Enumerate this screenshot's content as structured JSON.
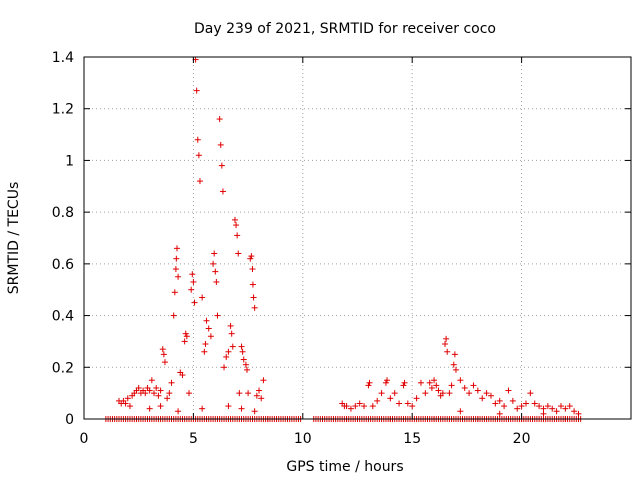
{
  "chart_data": {
    "type": "scatter",
    "title": "Day 239 of 2021, SRMTID for receiver coco",
    "xlabel": "GPS time / hours",
    "ylabel": "SRMTID / TECUs",
    "xlim": [
      0,
      25
    ],
    "ylim": [
      0,
      1.4
    ],
    "x_ticks": [
      0,
      5,
      10,
      15,
      20
    ],
    "x_tick_labels": [
      "0",
      "5",
      "10",
      "15",
      "20"
    ],
    "y_ticks": [
      0,
      0.2,
      0.4,
      0.6,
      0.8,
      1.0,
      1.2,
      1.4
    ],
    "y_tick_labels": [
      "0",
      "0.2",
      "0.4",
      "0.6",
      "0.8",
      "1",
      "1.2",
      "1.4"
    ],
    "grid": true,
    "marker": "+",
    "marker_color": "#e00000",
    "series": [
      {
        "name": "SRMTID",
        "points": [
          [
            1.6,
            0.07
          ],
          [
            1.7,
            0.06
          ],
          [
            1.8,
            0.07
          ],
          [
            1.9,
            0.06
          ],
          [
            2.0,
            0.08
          ],
          [
            2.1,
            0.05
          ],
          [
            2.2,
            0.09
          ],
          [
            2.3,
            0.1
          ],
          [
            2.4,
            0.11
          ],
          [
            2.5,
            0.12
          ],
          [
            2.6,
            0.1
          ],
          [
            2.7,
            0.11
          ],
          [
            2.8,
            0.1
          ],
          [
            2.9,
            0.12
          ],
          [
            3.0,
            0.11
          ],
          [
            3.1,
            0.15
          ],
          [
            3.2,
            0.1
          ],
          [
            3.3,
            0.12
          ],
          [
            3.4,
            0.09
          ],
          [
            3.5,
            0.11
          ],
          [
            3.6,
            0.27
          ],
          [
            3.65,
            0.25
          ],
          [
            3.7,
            0.22
          ],
          [
            3.8,
            0.08
          ],
          [
            3.9,
            0.1
          ],
          [
            4.0,
            0.14
          ],
          [
            4.1,
            0.4
          ],
          [
            4.15,
            0.49
          ],
          [
            4.2,
            0.58
          ],
          [
            4.22,
            0.62
          ],
          [
            4.25,
            0.66
          ],
          [
            4.3,
            0.55
          ],
          [
            4.4,
            0.18
          ],
          [
            4.5,
            0.17
          ],
          [
            4.6,
            0.3
          ],
          [
            4.65,
            0.33
          ],
          [
            4.7,
            0.32
          ],
          [
            4.8,
            0.1
          ],
          [
            4.9,
            0.5
          ],
          [
            4.95,
            0.56
          ],
          [
            5.0,
            0.53
          ],
          [
            5.05,
            0.45
          ],
          [
            5.1,
            1.39
          ],
          [
            5.15,
            1.27
          ],
          [
            5.2,
            1.08
          ],
          [
            5.25,
            1.02
          ],
          [
            5.3,
            0.92
          ],
          [
            5.4,
            0.47
          ],
          [
            5.5,
            0.26
          ],
          [
            5.55,
            0.29
          ],
          [
            5.6,
            0.38
          ],
          [
            5.7,
            0.35
          ],
          [
            5.8,
            0.32
          ],
          [
            5.9,
            0.6
          ],
          [
            5.95,
            0.64
          ],
          [
            6.0,
            0.57
          ],
          [
            6.05,
            0.53
          ],
          [
            6.1,
            0.4
          ],
          [
            6.2,
            1.16
          ],
          [
            6.25,
            1.06
          ],
          [
            6.3,
            0.98
          ],
          [
            6.35,
            0.88
          ],
          [
            6.4,
            0.2
          ],
          [
            6.5,
            0.24
          ],
          [
            6.6,
            0.26
          ],
          [
            6.7,
            0.36
          ],
          [
            6.75,
            0.33
          ],
          [
            6.8,
            0.28
          ],
          [
            6.9,
            0.77
          ],
          [
            6.95,
            0.75
          ],
          [
            7.0,
            0.71
          ],
          [
            7.05,
            0.64
          ],
          [
            7.1,
            0.1
          ],
          [
            7.2,
            0.28
          ],
          [
            7.25,
            0.26
          ],
          [
            7.3,
            0.23
          ],
          [
            7.4,
            0.21
          ],
          [
            7.45,
            0.19
          ],
          [
            7.5,
            0.1
          ],
          [
            7.6,
            0.62
          ],
          [
            7.65,
            0.63
          ],
          [
            7.7,
            0.58
          ],
          [
            7.72,
            0.52
          ],
          [
            7.75,
            0.47
          ],
          [
            7.8,
            0.43
          ],
          [
            7.9,
            0.09
          ],
          [
            8.0,
            0.11
          ],
          [
            8.1,
            0.08
          ],
          [
            8.2,
            0.15
          ],
          [
            3.0,
            0.04
          ],
          [
            3.5,
            0.05
          ],
          [
            4.3,
            0.03
          ],
          [
            5.4,
            0.04
          ],
          [
            6.6,
            0.05
          ],
          [
            7.2,
            0.04
          ],
          [
            7.8,
            0.03
          ],
          [
            11.8,
            0.06
          ],
          [
            11.9,
            0.05
          ],
          [
            12.0,
            0.05
          ],
          [
            12.2,
            0.04
          ],
          [
            12.4,
            0.05
          ],
          [
            12.6,
            0.06
          ],
          [
            12.8,
            0.05
          ],
          [
            13.0,
            0.13
          ],
          [
            13.05,
            0.14
          ],
          [
            13.2,
            0.05
          ],
          [
            13.4,
            0.07
          ],
          [
            13.6,
            0.1
          ],
          [
            13.8,
            0.14
          ],
          [
            13.85,
            0.15
          ],
          [
            14.0,
            0.08
          ],
          [
            14.2,
            0.1
          ],
          [
            14.4,
            0.06
          ],
          [
            14.6,
            0.13
          ],
          [
            14.65,
            0.14
          ],
          [
            14.8,
            0.06
          ],
          [
            15.0,
            0.05
          ],
          [
            15.2,
            0.08
          ],
          [
            15.4,
            0.14
          ],
          [
            15.6,
            0.1
          ],
          [
            15.8,
            0.14
          ],
          [
            15.9,
            0.12
          ],
          [
            16.0,
            0.15
          ],
          [
            16.1,
            0.13
          ],
          [
            16.2,
            0.11
          ],
          [
            16.3,
            0.09
          ],
          [
            16.4,
            0.1
          ],
          [
            16.5,
            0.29
          ],
          [
            16.55,
            0.31
          ],
          [
            16.6,
            0.26
          ],
          [
            16.7,
            0.1
          ],
          [
            16.8,
            0.13
          ],
          [
            16.9,
            0.21
          ],
          [
            16.95,
            0.25
          ],
          [
            17.0,
            0.19
          ],
          [
            17.2,
            0.15
          ],
          [
            17.4,
            0.12
          ],
          [
            17.6,
            0.1
          ],
          [
            17.8,
            0.13
          ],
          [
            18.0,
            0.11
          ],
          [
            18.2,
            0.08
          ],
          [
            18.4,
            0.1
          ],
          [
            18.6,
            0.09
          ],
          [
            18.8,
            0.06
          ],
          [
            19.0,
            0.07
          ],
          [
            19.2,
            0.05
          ],
          [
            19.4,
            0.11
          ],
          [
            19.6,
            0.07
          ],
          [
            19.8,
            0.04
          ],
          [
            20.0,
            0.05
          ],
          [
            20.2,
            0.06
          ],
          [
            20.4,
            0.1
          ],
          [
            20.6,
            0.06
          ],
          [
            20.8,
            0.05
          ],
          [
            21.0,
            0.04
          ],
          [
            21.2,
            0.05
          ],
          [
            21.4,
            0.04
          ],
          [
            21.6,
            0.03
          ],
          [
            21.8,
            0.05
          ],
          [
            22.0,
            0.04
          ],
          [
            22.2,
            0.05
          ],
          [
            22.4,
            0.03
          ],
          [
            22.6,
            0.02
          ],
          [
            12.0,
            0.0
          ],
          [
            14.0,
            0.0
          ],
          [
            16.0,
            0.0
          ],
          [
            18.0,
            0.0
          ],
          [
            20.0,
            0.0
          ],
          [
            22.0,
            0.0
          ],
          [
            17.2,
            0.03
          ],
          [
            19.0,
            0.02
          ],
          [
            21.0,
            0.02
          ]
        ]
      }
    ],
    "baseline_segments": [
      [
        1.0,
        8.4
      ],
      [
        8.4,
        9.9
      ],
      [
        10.5,
        22.7
      ]
    ]
  }
}
